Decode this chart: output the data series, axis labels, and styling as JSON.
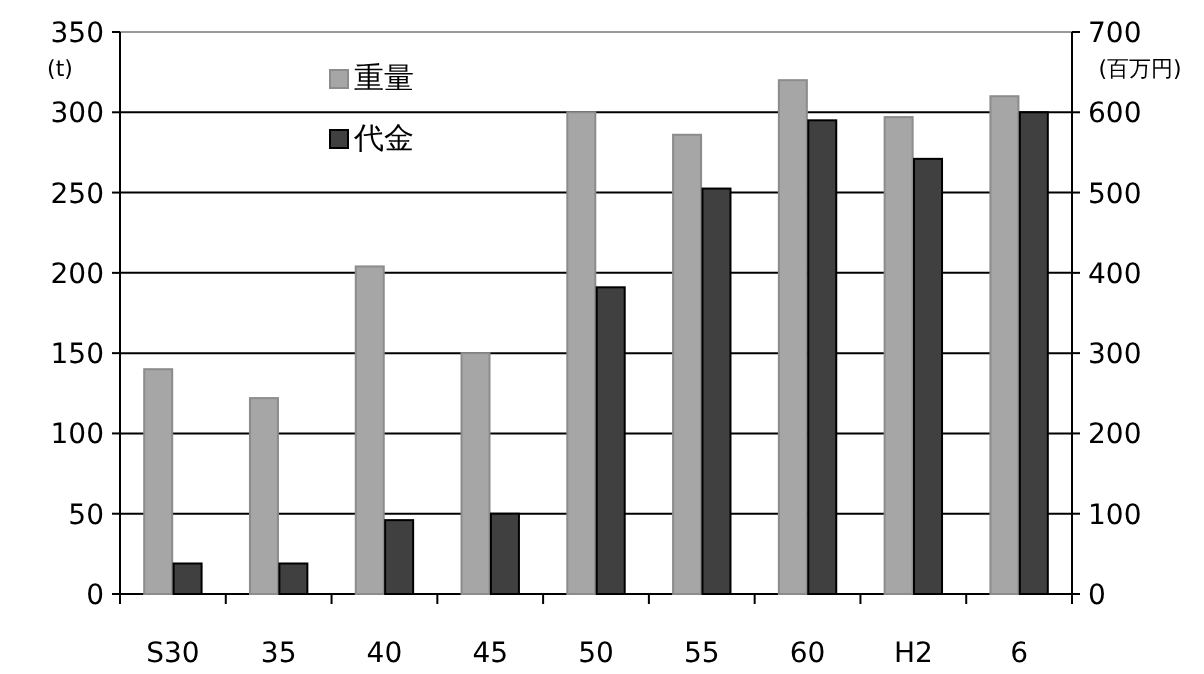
{
  "chart_data": {
    "type": "bar",
    "categories": [
      "S30",
      "35",
      "40",
      "45",
      "50",
      "55",
      "60",
      "H2",
      "6"
    ],
    "series": [
      {
        "name": "重量",
        "color": "#a6a6a6",
        "values": [
          140,
          122,
          204,
          150,
          300,
          286,
          320,
          297,
          310
        ]
      },
      {
        "name": "代金",
        "color": "#404040",
        "axis": "y2",
        "values": [
          38,
          38,
          92,
          100,
          382,
          505,
          590,
          542,
          600
        ]
      }
    ],
    "ylabel": "(t)",
    "y2label": "(百万円)",
    "ylim": [
      0,
      350
    ],
    "yticks": [
      0,
      50,
      100,
      150,
      200,
      250,
      300,
      350
    ],
    "y2lim": [
      0,
      700
    ],
    "y2ticks": [
      0,
      100,
      200,
      300,
      400,
      500,
      600,
      700
    ],
    "grid": "y",
    "legend": "top left"
  }
}
